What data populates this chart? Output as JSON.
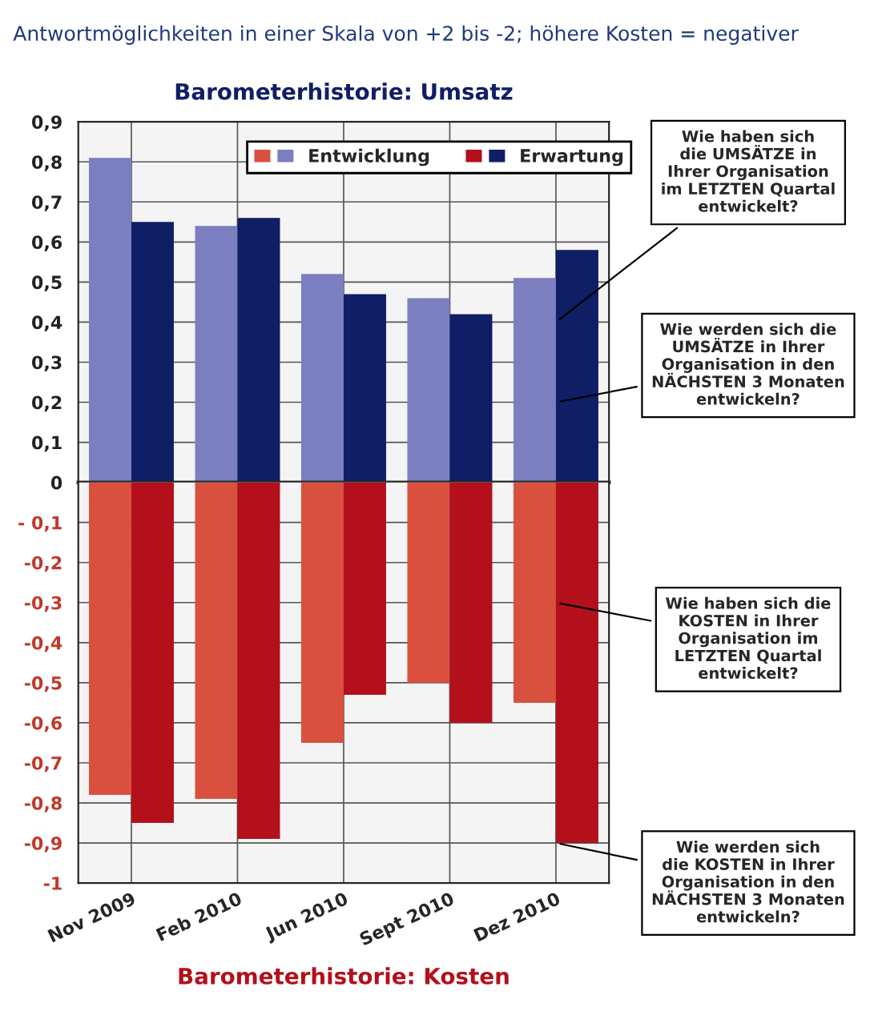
{
  "chart_data": [
    {
      "type": "bar",
      "title": "Antwortmöglichkeiten in einer Skala von +2 bis -2; höhere Kosten = negativer",
      "subtitle": "Barometerhistorie: Umsatz",
      "categories": [
        "Nov 2009",
        "Feb 2010",
        "Jun 2010",
        "Sept 2010",
        "Dez 2010"
      ],
      "series": [
        {
          "name": "Entwicklung",
          "color": "#7b7fc0",
          "values": [
            0.81,
            0.64,
            0.52,
            0.46,
            0.51
          ]
        },
        {
          "name": "Erwartung",
          "color": "#101e66",
          "values": [
            0.65,
            0.66,
            0.47,
            0.42,
            0.58
          ]
        }
      ],
      "ylim": [
        0,
        0.9
      ],
      "yticks": [
        0,
        {
          "value": 0.1,
          "label": "0,1"
        },
        {
          "value": 0.2,
          "label": "0,2"
        },
        {
          "value": 0.3,
          "label": "0,3"
        },
        {
          "value": 0.4,
          "label": "0,4"
        },
        {
          "value": 0.5,
          "label": "0,5"
        },
        {
          "value": 0.6,
          "label": "0,6"
        },
        {
          "value": 0.7,
          "label": "0,7"
        },
        {
          "value": 0.8,
          "label": "0,8"
        },
        {
          "value": 0.9,
          "label": "0,9"
        }
      ],
      "tick_labels": "y",
      "grid": true,
      "legend": "top right",
      "annotations": [
        {
          "text": "Wie haben sich\ndie UMSÄTZE in\nIhrer Organisation\nim LETZTEN Quartal\nentwickelt?",
          "x": "Dez 2010",
          "y": 0.4
        },
        {
          "text": "Wie werden sich die\nUMSÄTZE in Ihrer\nOrganisation in den\nNÄCHSTEN 3 Monaten\nentwickeln?",
          "x": "Dez 2010",
          "y": 0.2
        }
      ]
    },
    {
      "type": "bar",
      "xlabel": "Barometerhistorie: Kosten",
      "categories": [
        "Nov 2009",
        "Feb 2010",
        "Jun 2010",
        "Sept 2010",
        "Dez 2010"
      ],
      "series": [
        {
          "color": "#d9503f",
          "values": [
            -0.78,
            -0.79,
            -0.65,
            -0.5,
            -0.55
          ]
        },
        {
          "color": "#b3101b",
          "values": [
            -0.85,
            -0.89,
            -0.53,
            -0.6,
            -0.9
          ]
        }
      ],
      "ylim": [
        -1,
        0
      ],
      "yticks": [
        {
          "value": -1,
          "label": "-1"
        },
        {
          "value": -0.9,
          "label": "-0,9"
        },
        {
          "value": -0.8,
          "label": "-0,8"
        },
        {
          "value": -0.7,
          "label": "-0,7"
        },
        {
          "value": -0.6,
          "label": "-0,6"
        },
        {
          "value": -0.5,
          "label": "-0,5"
        },
        {
          "value": -0.4,
          "label": "-0,4"
        },
        {
          "value": -0.3,
          "label": "-0,3"
        },
        {
          "value": -0.2,
          "label": "-0,2"
        },
        {
          "value": -0.1,
          "label": "- 0,1"
        }
      ],
      "grid": true,
      "annotations": [
        {
          "text": "Wie haben sich die\nKOSTEN in Ihrer\nOrganisation im\nLETZTEN Quartal\nentwickelt?",
          "x": "Dez 2010",
          "y": -0.3
        },
        {
          "text": "Wie werden sich\ndie KOSTEN in Ihrer\nOrganisation in den\nNÄCHSTEN 3 Monaten\nentwickeln?",
          "x": "Dez 2010",
          "y": -0.9
        }
      ]
    }
  ]
}
